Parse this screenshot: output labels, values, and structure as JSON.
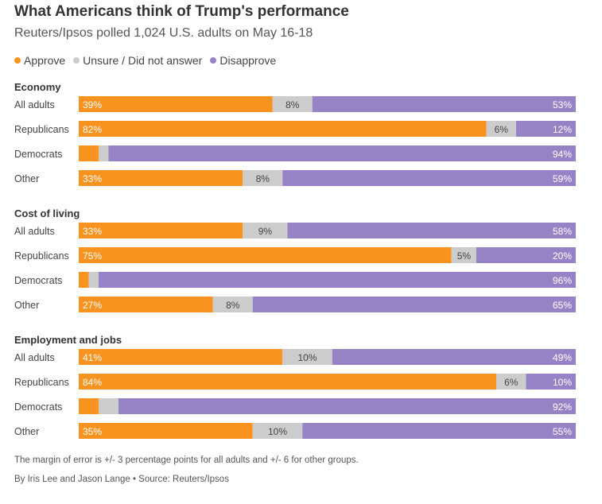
{
  "chart_data": {
    "type": "bar",
    "orientation": "horizontal",
    "stacked": true,
    "title": "What Americans think of Trump's performance",
    "subtitle": "Reuters/Ipsos polled 1,024 U.S. adults on May 16-18",
    "legend": [
      {
        "name": "Approve",
        "color": "#f7931e"
      },
      {
        "name": "Unsure / Did not answer",
        "color": "#cccccc"
      },
      {
        "name": "Disapprove",
        "color": "#9683c5"
      }
    ],
    "xlim": [
      0,
      100
    ],
    "groups": [
      {
        "name": "Economy",
        "rows": [
          {
            "label": "All adults",
            "approve": 39,
            "unsure": 8,
            "disapprove": 53,
            "labels": [
              "39%",
              "8%",
              "53%"
            ]
          },
          {
            "label": "Republicans",
            "approve": 82,
            "unsure": 6,
            "disapprove": 12,
            "labels": [
              "82%",
              "6%",
              "12%"
            ]
          },
          {
            "label": "Democrats",
            "approve": 4,
            "unsure": 2,
            "disapprove": 94,
            "labels": [
              "",
              "",
              "94%"
            ]
          },
          {
            "label": "Other",
            "approve": 33,
            "unsure": 8,
            "disapprove": 59,
            "labels": [
              "33%",
              "8%",
              "59%"
            ]
          }
        ]
      },
      {
        "name": "Cost of living",
        "rows": [
          {
            "label": "All adults",
            "approve": 33,
            "unsure": 9,
            "disapprove": 58,
            "labels": [
              "33%",
              "9%",
              "58%"
            ]
          },
          {
            "label": "Republicans",
            "approve": 75,
            "unsure": 5,
            "disapprove": 20,
            "labels": [
              "75%",
              "5%",
              "20%"
            ]
          },
          {
            "label": "Democrats",
            "approve": 2,
            "unsure": 2,
            "disapprove": 96,
            "labels": [
              "",
              "",
              "96%"
            ]
          },
          {
            "label": "Other",
            "approve": 27,
            "unsure": 8,
            "disapprove": 65,
            "labels": [
              "27%",
              "8%",
              "65%"
            ]
          }
        ]
      },
      {
        "name": "Employment and jobs",
        "rows": [
          {
            "label": "All adults",
            "approve": 41,
            "unsure": 10,
            "disapprove": 49,
            "labels": [
              "41%",
              "10%",
              "49%"
            ]
          },
          {
            "label": "Republicans",
            "approve": 84,
            "unsure": 6,
            "disapprove": 10,
            "labels": [
              "84%",
              "6%",
              "10%"
            ]
          },
          {
            "label": "Democrats",
            "approve": 4,
            "unsure": 4,
            "disapprove": 92,
            "labels": [
              "",
              "",
              "92%"
            ]
          },
          {
            "label": "Other",
            "approve": 35,
            "unsure": 10,
            "disapprove": 55,
            "labels": [
              "35%",
              "10%",
              "55%"
            ]
          }
        ]
      }
    ]
  },
  "footnote": "The margin of error is +/- 3 percentage points for all adults and +/- 6 for other groups.",
  "byline": "By Iris Lee and Jason Lange • Source: Reuters/Ipsos"
}
